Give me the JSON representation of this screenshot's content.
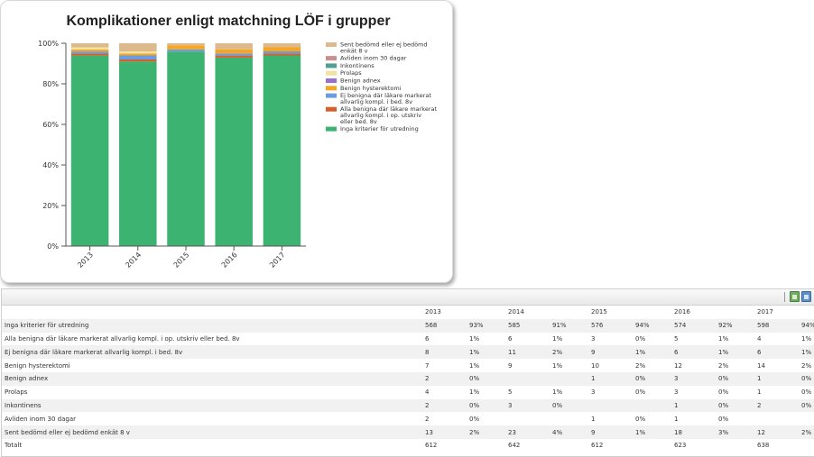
{
  "chart_data": {
    "type": "bar",
    "stacked": true,
    "title": "Komplikationer enligt matchning LÖF i grupper",
    "categories": [
      "2013",
      "2014",
      "2015",
      "2016",
      "2017"
    ],
    "ylim": [
      0,
      100
    ],
    "yticks": [
      "0%",
      "20%",
      "40%",
      "60%",
      "80%",
      "100%"
    ],
    "legend_position": "right",
    "series": [
      {
        "name": "Inga kriterier för utredning",
        "color": "#3cb371",
        "values": [
          93,
          91,
          94,
          92,
          94
        ]
      },
      {
        "name": "Alla benigna där läkare markerat allvarlig kompl. i op. utskriv eller bed. 8v",
        "color": "#d35f2a",
        "values": [
          1,
          1,
          0,
          1,
          1
        ]
      },
      {
        "name": "Ej benigna där läkare markerat allvarlig kompl. i bed. 8v",
        "color": "#6d9be0",
        "values": [
          1,
          2,
          1,
          1,
          1
        ]
      },
      {
        "name": "Benign hysterektomi",
        "color": "#f5a623",
        "values": [
          1,
          1,
          2,
          2,
          2
        ]
      },
      {
        "name": "Benign adnex",
        "color": "#9b6fce",
        "values": [
          0,
          0,
          0,
          0,
          0
        ]
      },
      {
        "name": "Prolaps",
        "color": "#f1e4a0",
        "values": [
          1,
          1,
          0,
          0,
          0
        ]
      },
      {
        "name": "Inkontinens",
        "color": "#4f9f92",
        "values": [
          0,
          0,
          0,
          0,
          0
        ]
      },
      {
        "name": "Avliden inom 30 dagar",
        "color": "#c99090",
        "values": [
          0,
          0,
          0,
          0,
          0
        ]
      },
      {
        "name": "Sent bedömd eller ej bedömd enkät 8 v",
        "color": "#ddb98e",
        "values": [
          2,
          4,
          1,
          3,
          2
        ]
      }
    ],
    "legend_lines": [
      {
        "series": 8,
        "lines": [
          "Sent bedömd eller ej bedömd",
          "enkät 8 v"
        ]
      },
      {
        "series": 7,
        "lines": [
          "Avliden inom 30 dagar"
        ]
      },
      {
        "series": 6,
        "lines": [
          "Inkontinens"
        ]
      },
      {
        "series": 5,
        "lines": [
          "Prolaps"
        ]
      },
      {
        "series": 4,
        "lines": [
          "Benign adnex"
        ]
      },
      {
        "series": 3,
        "lines": [
          "Benign hysterektomi"
        ]
      },
      {
        "series": 2,
        "lines": [
          "Ej benigna där läkare markerat",
          "allvarlig kompl. i bed. 8v"
        ]
      },
      {
        "series": 1,
        "lines": [
          "Alla benigna där läkare markerat",
          "allvarlig kompl. i op. utskriv",
          "eller bed. 8v"
        ]
      },
      {
        "series": 0,
        "lines": [
          "Inga kriterier för utredning"
        ]
      }
    ]
  },
  "table": {
    "years": [
      "2013",
      "2014",
      "2015",
      "2016",
      "2017"
    ],
    "rows": [
      {
        "label": "Inga kriterier för utredning",
        "cells": [
          [
            "568",
            "93%"
          ],
          [
            "585",
            "91%"
          ],
          [
            "576",
            "94%"
          ],
          [
            "574",
            "92%"
          ],
          [
            "598",
            "94%"
          ]
        ]
      },
      {
        "label": "Alla benigna där läkare markerat allvarlig kompl. i op. utskriv eller bed. 8v",
        "cells": [
          [
            "6",
            "1%"
          ],
          [
            "6",
            "1%"
          ],
          [
            "3",
            "0%"
          ],
          [
            "5",
            "1%"
          ],
          [
            "4",
            "1%"
          ]
        ]
      },
      {
        "label": "Ej benigna där läkare markerat allvarlig kompl. i bed. 8v",
        "cells": [
          [
            "8",
            "1%"
          ],
          [
            "11",
            "2%"
          ],
          [
            "9",
            "1%"
          ],
          [
            "6",
            "1%"
          ],
          [
            "6",
            "1%"
          ]
        ]
      },
      {
        "label": "Benign hysterektomi",
        "cells": [
          [
            "7",
            "1%"
          ],
          [
            "9",
            "1%"
          ],
          [
            "10",
            "2%"
          ],
          [
            "12",
            "2%"
          ],
          [
            "14",
            "2%"
          ]
        ]
      },
      {
        "label": "Benign adnex",
        "cells": [
          [
            "2",
            "0%"
          ],
          [
            "",
            ""
          ],
          [
            "1",
            "0%"
          ],
          [
            "3",
            "0%"
          ],
          [
            "1",
            "0%"
          ]
        ]
      },
      {
        "label": "Prolaps",
        "cells": [
          [
            "4",
            "1%"
          ],
          [
            "5",
            "1%"
          ],
          [
            "3",
            "0%"
          ],
          [
            "3",
            "0%"
          ],
          [
            "1",
            "0%"
          ]
        ]
      },
      {
        "label": "Inkontinens",
        "cells": [
          [
            "2",
            "0%"
          ],
          [
            "3",
            "0%"
          ],
          [
            "",
            ""
          ],
          [
            "1",
            "0%"
          ],
          [
            "2",
            "0%"
          ]
        ]
      },
      {
        "label": "Avliden inom 30 dagar",
        "cells": [
          [
            "2",
            "0%"
          ],
          [
            "",
            ""
          ],
          [
            "1",
            "0%"
          ],
          [
            "1",
            "0%"
          ],
          [
            "",
            ""
          ]
        ]
      },
      {
        "label": "Sent bedömd eller ej bedömd enkät 8 v",
        "cells": [
          [
            "13",
            "2%"
          ],
          [
            "23",
            "4%"
          ],
          [
            "9",
            "1%"
          ],
          [
            "18",
            "3%"
          ],
          [
            "12",
            "2%"
          ]
        ]
      },
      {
        "label": "Totalt",
        "cells": [
          [
            "612",
            ""
          ],
          [
            "642",
            ""
          ],
          [
            "612",
            ""
          ],
          [
            "623",
            ""
          ],
          [
            "638",
            ""
          ]
        ]
      }
    ]
  }
}
